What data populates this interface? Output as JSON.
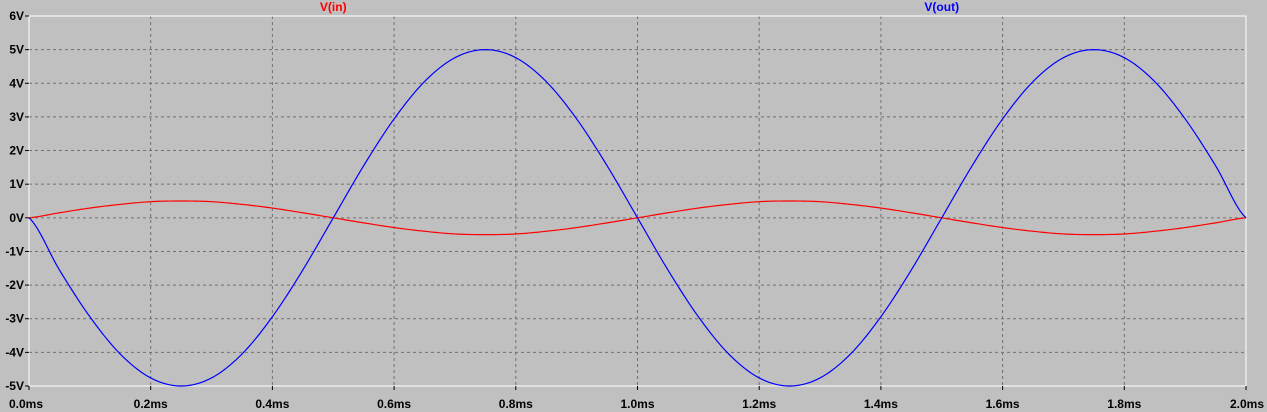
{
  "chart_data": {
    "type": "line",
    "title": "",
    "xlabel": "",
    "ylabel": "",
    "xlim": [
      0.0,
      2.0
    ],
    "ylim": [
      -5,
      6
    ],
    "grid": true,
    "legend": "top",
    "x_ticks": [
      {
        "value": 0.0,
        "label": "0.0ms"
      },
      {
        "value": 0.2,
        "label": "0.2ms"
      },
      {
        "value": 0.4,
        "label": "0.4ms"
      },
      {
        "value": 0.6,
        "label": "0.6ms"
      },
      {
        "value": 0.8,
        "label": "0.8ms"
      },
      {
        "value": 1.0,
        "label": "1.0ms"
      },
      {
        "value": 1.2,
        "label": "1.2ms"
      },
      {
        "value": 1.4,
        "label": "1.4ms"
      },
      {
        "value": 1.6,
        "label": "1.6ms"
      },
      {
        "value": 1.8,
        "label": "1.8ms"
      },
      {
        "value": 2.0,
        "label": "2.0ms"
      }
    ],
    "y_ticks": [
      {
        "value": 6,
        "label": "6V"
      },
      {
        "value": 5,
        "label": "5V"
      },
      {
        "value": 4,
        "label": "4V"
      },
      {
        "value": 3,
        "label": "3V"
      },
      {
        "value": 2,
        "label": "2V"
      },
      {
        "value": 1,
        "label": "1V"
      },
      {
        "value": 0,
        "label": "0V"
      },
      {
        "value": -1,
        "label": "-1V"
      },
      {
        "value": -2,
        "label": "-2V"
      },
      {
        "value": -3,
        "label": "-3V"
      },
      {
        "value": -4,
        "label": "-4V"
      },
      {
        "value": -5,
        "label": "-5V"
      }
    ],
    "series": [
      {
        "name": "V(in)",
        "color": "#ff0000",
        "x": [
          0.0,
          0.05,
          0.1,
          0.15,
          0.2,
          0.25,
          0.3,
          0.35,
          0.4,
          0.45,
          0.5,
          0.55,
          0.6,
          0.65,
          0.7,
          0.75,
          0.8,
          0.85,
          0.9,
          0.95,
          1.0,
          1.05,
          1.1,
          1.15,
          1.2,
          1.25,
          1.3,
          1.35,
          1.4,
          1.45,
          1.5,
          1.55,
          1.6,
          1.65,
          1.7,
          1.75,
          1.8,
          1.85,
          1.9,
          1.95,
          2.0
        ],
        "y": [
          0.0,
          0.15,
          0.29,
          0.4,
          0.48,
          0.5,
          0.48,
          0.4,
          0.29,
          0.15,
          0.0,
          -0.15,
          -0.29,
          -0.4,
          -0.48,
          -0.5,
          -0.48,
          -0.4,
          -0.29,
          -0.15,
          0.0,
          0.15,
          0.29,
          0.4,
          0.48,
          0.5,
          0.48,
          0.4,
          0.29,
          0.15,
          0.0,
          -0.15,
          -0.29,
          -0.4,
          -0.48,
          -0.5,
          -0.48,
          -0.4,
          -0.29,
          -0.15,
          0.0
        ]
      },
      {
        "name": "V(out)",
        "color": "#0000ff",
        "x": [
          0.0,
          0.05,
          0.1,
          0.15,
          0.2,
          0.25,
          0.3,
          0.35,
          0.4,
          0.45,
          0.5,
          0.55,
          0.6,
          0.65,
          0.7,
          0.75,
          0.8,
          0.85,
          0.9,
          0.95,
          1.0,
          1.05,
          1.1,
          1.15,
          1.2,
          1.25,
          1.3,
          1.35,
          1.4,
          1.45,
          1.5,
          1.55,
          1.6,
          1.65,
          1.7,
          1.75,
          1.8,
          1.85,
          1.9,
          1.95,
          2.0
        ],
        "y": [
          0.0,
          -1.55,
          -2.94,
          -4.05,
          -4.76,
          -5.0,
          -4.76,
          -4.05,
          -2.94,
          -1.55,
          0.0,
          1.55,
          2.94,
          4.05,
          4.76,
          5.0,
          4.76,
          4.05,
          2.94,
          1.55,
          0.0,
          -1.55,
          -2.94,
          -4.05,
          -4.76,
          -5.0,
          -4.76,
          -4.05,
          -2.94,
          -1.55,
          0.0,
          1.55,
          2.94,
          4.05,
          4.76,
          5.0,
          4.76,
          4.05,
          2.94,
          1.55,
          0.0
        ]
      }
    ],
    "legend_entries": [
      {
        "label": "V(in)",
        "color": "#ff0000",
        "anchor_x": 0.5
      },
      {
        "label": "V(out)",
        "color": "#0000ff",
        "anchor_x": 1.5
      }
    ]
  }
}
